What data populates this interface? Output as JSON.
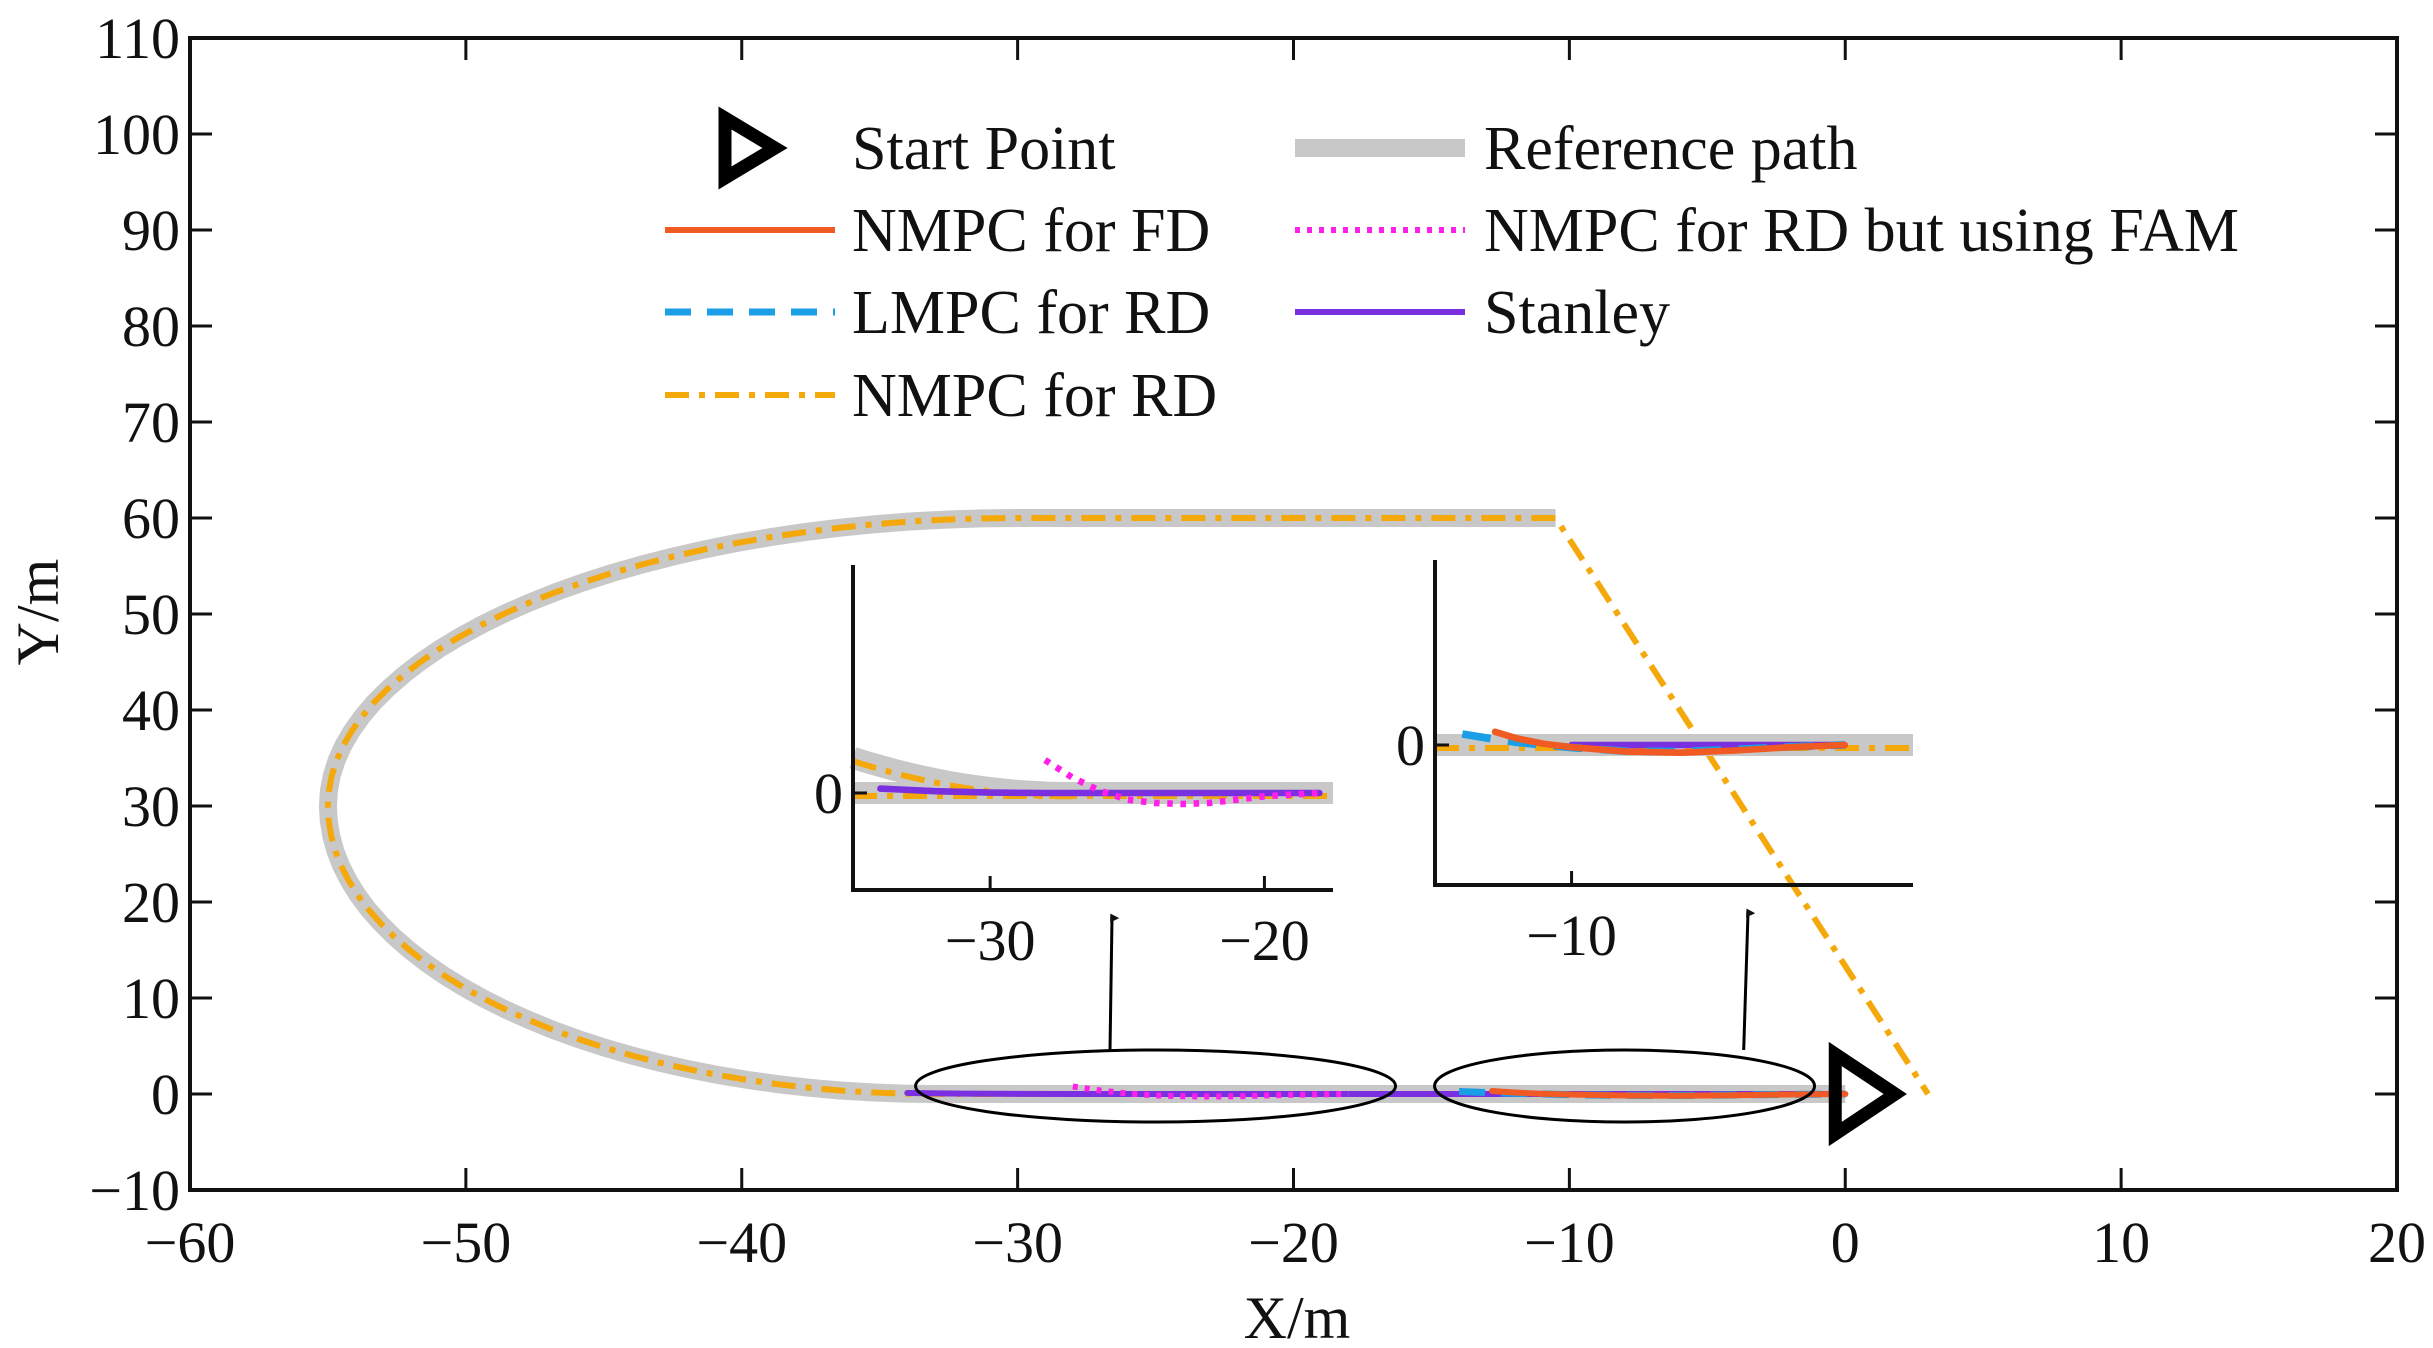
{
  "chart_data": {
    "type": "line",
    "title": "",
    "xlabel": "X/m",
    "ylabel": "Y/m",
    "xlim": [
      -60,
      20
    ],
    "ylim": [
      -10,
      110
    ],
    "xticks": [
      -60,
      -50,
      -40,
      -30,
      -20,
      -10,
      0,
      10,
      20
    ],
    "yticks": [
      -10,
      0,
      10,
      20,
      30,
      40,
      50,
      60,
      70,
      80,
      90,
      100,
      110
    ],
    "xtick_labels": [
      "−60",
      "−50",
      "−40",
      "−30",
      "−20",
      "−10",
      "0",
      "10",
      "20"
    ],
    "ytick_labels": [
      "−10",
      "0",
      "10",
      "20",
      "30",
      "40",
      "50",
      "60",
      "70",
      "80",
      "90",
      "100",
      "110"
    ],
    "grid": false,
    "legend_position": "top",
    "start_point": {
      "x": 0,
      "y": 0,
      "label": "Start Point"
    },
    "path_shape": {
      "straight_low": {
        "y": 0,
        "x_from": 0,
        "x_to": -33
      },
      "curve_left_x": -55,
      "curve_center_y": 30,
      "straight_high": {
        "y": 60,
        "x_from": -30,
        "x_to": -10.5
      }
    },
    "series": [
      {
        "name": "Reference path",
        "color": "#c8c8c8",
        "style": "thick-solid"
      },
      {
        "name": "NMPC for FD",
        "color": "#f15a22",
        "style": "solid",
        "x": [
          -12.8,
          -12,
          -11,
          -10,
          -8,
          -6,
          -4,
          -2,
          0
        ],
        "y": [
          0.6,
          0.3,
          0.05,
          -0.1,
          -0.3,
          -0.35,
          -0.25,
          -0.1,
          0
        ]
      },
      {
        "name": "LMPC for RD",
        "color": "#1a9ee6",
        "style": "dashed",
        "x": [
          -14,
          -13,
          -12,
          -11,
          -10,
          -8,
          -6,
          -4,
          -2,
          0
        ],
        "y": [
          0.5,
          0.3,
          0.12,
          0,
          -0.12,
          -0.28,
          -0.3,
          -0.2,
          -0.08,
          0
        ]
      },
      {
        "name": "NMPC for RD",
        "color": "#f5a80a",
        "style": "dashdot"
      },
      {
        "name": "NMPC for RD but using FAM",
        "color": "#ff1fe8",
        "style": "dotted",
        "x": [
          -28,
          -27,
          -26,
          -25,
          -24,
          -23,
          -22,
          -21,
          -20,
          -18
        ],
        "y": [
          1.5,
          0.7,
          0.1,
          -0.3,
          -0.45,
          -0.5,
          -0.45,
          -0.3,
          -0.15,
          0
        ]
      },
      {
        "name": "Stanley",
        "color": "#7a2fe0",
        "style": "solid",
        "x": [
          -34,
          -32,
          -30,
          -28,
          -26,
          -24,
          -22,
          -20,
          -18,
          -10,
          -5,
          0
        ],
        "y": [
          0.2,
          0.08,
          0.02,
          0,
          0,
          0,
          0,
          0,
          0,
          0,
          0,
          0
        ]
      }
    ],
    "insets": [
      {
        "name": "zoom-left",
        "xlim": [
          -35,
          -17.5
        ],
        "xticks": [
          -30,
          -20
        ],
        "xtick_labels": [
          "−30",
          "−20"
        ],
        "ytick_labels": [
          "0"
        ],
        "zoom_center": {
          "x": -25,
          "y": 0
        },
        "arrow_to": {
          "x": -26.5
        }
      },
      {
        "name": "zoom-right",
        "xlim": [
          -15,
          2.5
        ],
        "xticks": [
          -10
        ],
        "xtick_labels": [
          "−10"
        ],
        "ytick_labels": [
          "0"
        ],
        "zoom_center": {
          "x": -8,
          "y": 0
        },
        "arrow_to": {
          "x": -3.5
        }
      }
    ]
  },
  "legend": {
    "left": [
      {
        "label": "Start Point",
        "series": "start"
      },
      {
        "label": "NMPC for FD",
        "series": "NMPC for FD"
      },
      {
        "label": "LMPC for RD",
        "series": "LMPC for RD"
      },
      {
        "label": "NMPC for RD",
        "series": "NMPC for RD"
      }
    ],
    "right": [
      {
        "label": "Reference path",
        "series": "Reference path"
      },
      {
        "label": "NMPC for RD but using FAM",
        "series": "NMPC for RD but using FAM"
      },
      {
        "label": "Stanley",
        "series": "Stanley"
      }
    ]
  },
  "colors": {
    "reference": "#c8c8c8",
    "nmpc_fd": "#f15a22",
    "lmpc_rd": "#1a9ee6",
    "nmpc_rd": "#f5a80a",
    "nmpc_fam": "#ff1fe8",
    "stanley": "#7a2fe0",
    "axis": "#111111"
  }
}
